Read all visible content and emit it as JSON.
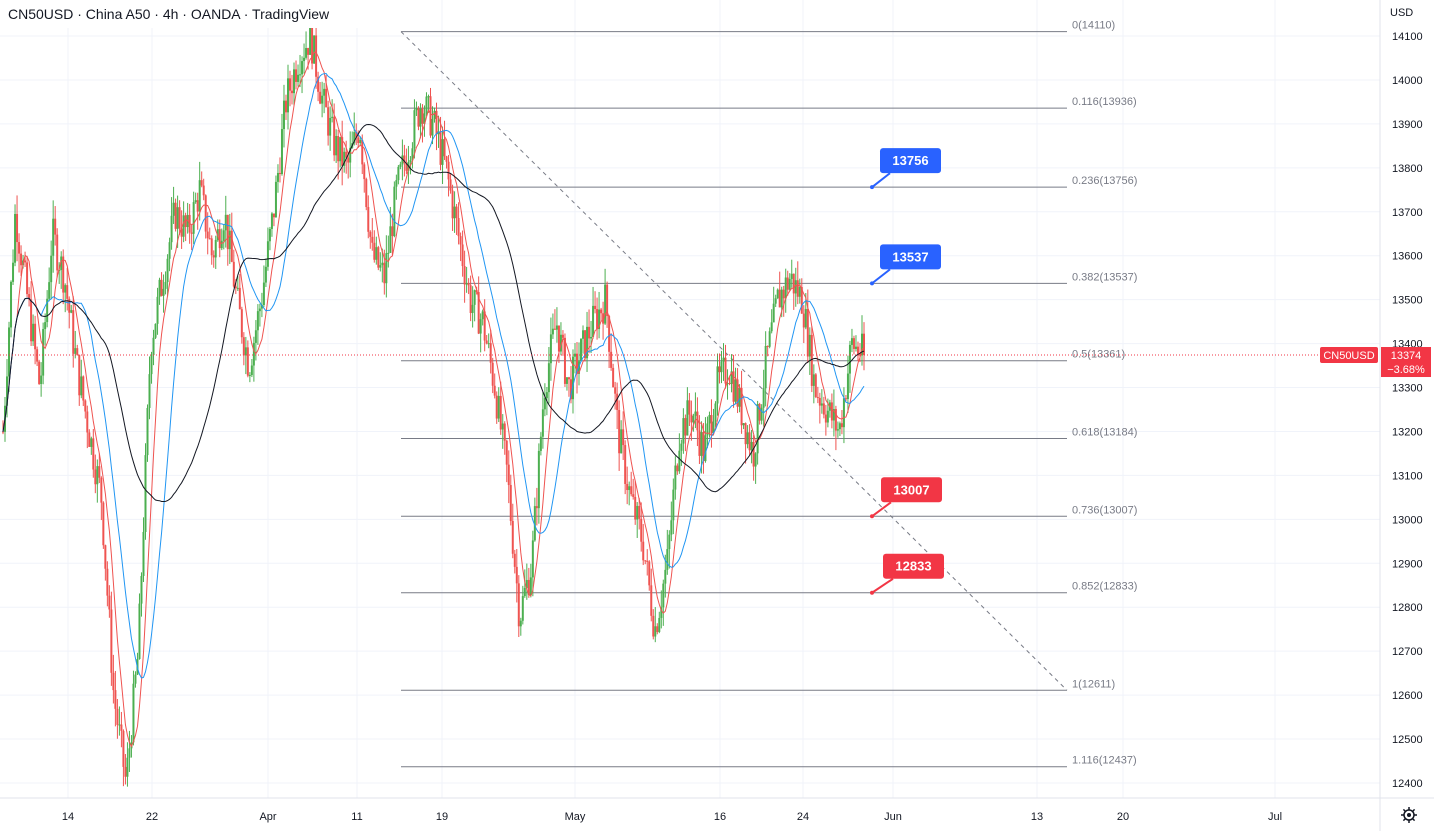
{
  "header": {
    "title": "CN50USD · China A50 · 4h · OANDA · TradingView",
    "symbol": "CN50USD",
    "name": "China A50",
    "timeframe": "4h",
    "broker": "OANDA",
    "platform": "TradingView"
  },
  "currency": "USD",
  "price_tag": {
    "symbol": "CN50USD",
    "price": "13374",
    "change": "−3.68%",
    "value": 13374
  },
  "colors": {
    "up": "#4caf50",
    "down": "#ef5350",
    "blue_callout": "#2962ff",
    "red_callout": "#f23645",
    "ma_fast": "#ef5350",
    "ma_mid": "#2196f3",
    "ma_slow": "#131722",
    "fib_line": "#787b86",
    "price_tag": "#f23645"
  },
  "chart_data": {
    "type": "candlestick",
    "ylim": [
      12380,
      14150
    ],
    "y_ticks": [
      12400,
      12500,
      12600,
      12700,
      12800,
      12900,
      13000,
      13100,
      13200,
      13300,
      13400,
      13500,
      13600,
      13700,
      13800,
      13900,
      14000,
      14100
    ],
    "x_ticks": [
      "14",
      "22",
      "Apr",
      "11",
      "19",
      "May",
      "16",
      "24",
      "Jun",
      "13",
      "20",
      "Jul"
    ],
    "fib_levels": [
      {
        "ratio": "0",
        "value": 14110,
        "label": "0(14110)"
      },
      {
        "ratio": "0.116",
        "value": 13936,
        "label": "0.116(13936)"
      },
      {
        "ratio": "0.236",
        "value": 13756,
        "label": "0.236(13756)"
      },
      {
        "ratio": "0.382",
        "value": 13537,
        "label": "0.382(13537)"
      },
      {
        "ratio": "0.5",
        "value": 13361,
        "label": "0.5(13361)"
      },
      {
        "ratio": "0.618",
        "value": 13184,
        "label": "0.618(13184)"
      },
      {
        "ratio": "0.736",
        "value": 13007,
        "label": "0.736(13007)"
      },
      {
        "ratio": "0.852",
        "value": 12833,
        "label": "0.852(12833)"
      },
      {
        "ratio": "1",
        "value": 12611,
        "label": "1(12611)"
      },
      {
        "ratio": "1.116",
        "value": 12437,
        "label": "1.116(12437)"
      }
    ],
    "callouts": [
      {
        "label": "13756",
        "value": 13756,
        "color": "blue"
      },
      {
        "label": "13537",
        "value": 13537,
        "color": "blue"
      },
      {
        "label": "13007",
        "value": 13007,
        "color": "red"
      },
      {
        "label": "12833",
        "value": 12833,
        "color": "red"
      }
    ],
    "trendline": {
      "from": 14110,
      "to": 12611,
      "style": "dashed"
    },
    "last_price": 13374,
    "price_path": [
      13200,
      13700,
      13500,
      13300,
      13650,
      13550,
      13350,
      13200,
      13050,
      12600,
      12400,
      12700,
      13400,
      13550,
      13700,
      13650,
      13750,
      13600,
      13700,
      13500,
      13350,
      13500,
      13700,
      13950,
      14050,
      14100,
      13950,
      13850,
      13800,
      13900,
      13600,
      13550,
      13750,
      13850,
      13950,
      13900,
      13800,
      13650,
      13500,
      13450,
      13300,
      13100,
      12780,
      12900,
      13300,
      13450,
      13300,
      13380,
      13450,
      13500,
      13200,
      13050,
      12950,
      12750,
      12900,
      13200,
      13250,
      13150,
      13300,
      13350,
      13250,
      13150,
      13350,
      13500,
      13550,
      13500,
      13300,
      13250,
      13200,
      13400,
      13374
    ]
  }
}
